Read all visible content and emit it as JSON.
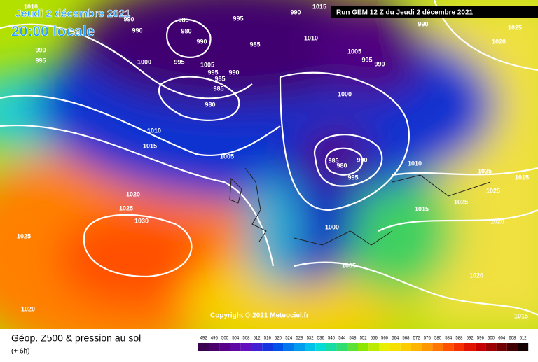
{
  "header": {
    "date": "Jeudi 2 décembre 2021",
    "time": "20:00 locale",
    "run": "Run GEM 12 Z du Jeudi 2 décembre 2021"
  },
  "copyright": "Copyright © 2021 Meteociel.fr",
  "legend": {
    "title": "Géop. Z500 & pression au sol",
    "lead": "(+ 6h)",
    "levels": [
      492,
      496,
      500,
      504,
      508,
      512,
      516,
      520,
      524,
      528,
      532,
      536,
      540,
      544,
      548,
      552,
      556,
      560,
      564,
      568,
      572,
      576,
      580,
      584,
      588,
      592,
      596,
      600,
      604,
      608,
      612
    ]
  },
  "isobars": [
    1010,
    990,
    990,
    985,
    980,
    990,
    995,
    985,
    990,
    1015,
    1010,
    990,
    1025,
    1020,
    990,
    995,
    1000,
    995,
    1005,
    995,
    985,
    985,
    990,
    980,
    1005,
    995,
    990,
    1000,
    1010,
    1015,
    1005,
    985,
    980,
    990,
    995,
    1010,
    1025,
    1025,
    1015,
    1020,
    1025,
    1030,
    1025,
    1000,
    1015,
    1025,
    1020,
    1005,
    1020,
    1020,
    1015
  ]
}
